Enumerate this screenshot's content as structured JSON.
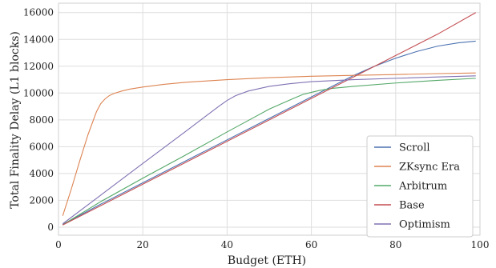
{
  "chart_data": {
    "type": "line",
    "title": "",
    "xlabel": "Budget (ETH)",
    "ylabel": "Total Finality Delay (L1 blocks)",
    "xlim": [
      0,
      100
    ],
    "ylim": [
      -600,
      16700
    ],
    "xticks": [
      0,
      20,
      40,
      60,
      80,
      100
    ],
    "yticks": [
      0,
      2000,
      4000,
      6000,
      8000,
      10000,
      12000,
      14000,
      16000
    ],
    "grid": true,
    "legend_position": "bottom-right",
    "series": [
      {
        "name": "Scroll",
        "color": "#4c72b0",
        "x": [
          1,
          10,
          20,
          30,
          40,
          50,
          60,
          65,
          70,
          75,
          80,
          85,
          90,
          95,
          99
        ],
        "y": [
          200,
          1710,
          3310,
          4910,
          6510,
          8110,
          9710,
          10510,
          11310,
          12000,
          12600,
          13100,
          13500,
          13750,
          13870
        ]
      },
      {
        "name": "ZKsync Era",
        "color": "#dd8452",
        "x": [
          1,
          3,
          5,
          7,
          9,
          10,
          11,
          12,
          13,
          15,
          17,
          20,
          25,
          30,
          40,
          50,
          60,
          70,
          80,
          90,
          99
        ],
        "y": [
          850,
          2800,
          4900,
          6900,
          8600,
          9200,
          9550,
          9800,
          9950,
          10150,
          10300,
          10450,
          10650,
          10800,
          11000,
          11150,
          11250,
          11320,
          11380,
          11450,
          11500
        ]
      },
      {
        "name": "Arbitrum",
        "color": "#55a868",
        "x": [
          1,
          10,
          20,
          30,
          40,
          45,
          50,
          55,
          58,
          60,
          62,
          65,
          70,
          80,
          90,
          99
        ],
        "y": [
          180,
          1900,
          3650,
          5350,
          7100,
          7950,
          8800,
          9500,
          9900,
          10050,
          10200,
          10350,
          10500,
          10750,
          10950,
          11100
        ]
      },
      {
        "name": "Base",
        "color": "#c44e52",
        "x": [
          1,
          10,
          20,
          30,
          40,
          50,
          60,
          70,
          80,
          90,
          99
        ],
        "y": [
          160,
          1600,
          3200,
          4800,
          6400,
          8000,
          9600,
          11200,
          12800,
          14400,
          16000
        ]
      },
      {
        "name": "Optimism",
        "color": "#8172b3",
        "x": [
          1,
          10,
          20,
          30,
          38,
          40,
          42,
          45,
          50,
          55,
          60,
          70,
          80,
          90,
          99
        ],
        "y": [
          250,
          2380,
          4750,
          7100,
          9000,
          9450,
          9800,
          10150,
          10500,
          10700,
          10850,
          11000,
          11100,
          11200,
          11280
        ]
      }
    ]
  }
}
